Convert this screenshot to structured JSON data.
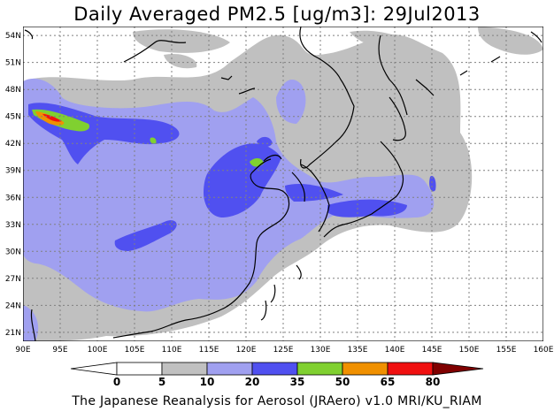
{
  "title": "Daily Averaged PM2.5 [ug/m3]: 29Jul2013",
  "footer": "The Japanese Reanalysis for Aerosol (JRAero) v1.0 MRI/KU_RIAM",
  "map": {
    "lon_range": [
      90,
      160
    ],
    "lat_range": [
      20,
      55
    ],
    "lon_ticks": [
      "90E",
      "95E",
      "100E",
      "105E",
      "110E",
      "115E",
      "120E",
      "125E",
      "130E",
      "135E",
      "140E",
      "145E",
      "150E",
      "155E",
      "160E"
    ],
    "lat_ticks": [
      "54N",
      "51N",
      "48N",
      "45N",
      "42N",
      "39N",
      "36N",
      "33N",
      "30N",
      "27N",
      "24N",
      "21N"
    ]
  },
  "colorbar": {
    "labels": [
      "0",
      "5",
      "10",
      "20",
      "35",
      "50",
      "65",
      "80"
    ],
    "colors": [
      "#ffffff",
      "#ffffff",
      "#c0c0c0",
      "#a0a0f0",
      "#5050f0",
      "#80d030",
      "#f09000",
      "#f01010",
      "#800000"
    ]
  }
}
